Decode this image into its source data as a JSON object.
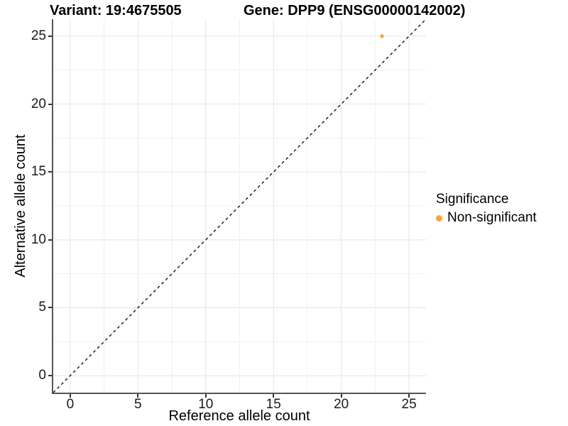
{
  "header": {
    "variant_title": "Variant: 19:4675505",
    "gene_title": "Gene: DPP9 (ENSG00000142002)"
  },
  "chart_data": {
    "type": "scatter",
    "title": "Variant: 19:4675505  /  Gene: DPP9 (ENSG00000142002)",
    "xlabel": "Reference allele count",
    "ylabel": "Alternative allele count",
    "xlim": [
      -1.25,
      26.25
    ],
    "ylim": [
      -1.25,
      26.25
    ],
    "x_ticks": [
      0,
      5,
      10,
      15,
      20,
      25
    ],
    "y_ticks": [
      0,
      5,
      10,
      15,
      20,
      25
    ],
    "x_minor_ticks": [
      2.5,
      7.5,
      12.5,
      17.5,
      22.5
    ],
    "y_minor_ticks": [
      2.5,
      7.5,
      12.5,
      17.5,
      22.5
    ],
    "grid": "major-and-minor",
    "identity_line": {
      "style": "dashed",
      "slope": 1,
      "intercept": 0
    },
    "series": [
      {
        "name": "Non-significant",
        "color": "#F9A242",
        "points": [
          {
            "x": 23,
            "y": 25
          }
        ]
      }
    ],
    "legend": {
      "title": "Significance",
      "position": "right",
      "entries": [
        {
          "label": "Non-significant",
          "color": "#F9A242"
        }
      ]
    }
  },
  "theme": {
    "background": "#FFFFFF",
    "grid_major": "#E3E3E3",
    "grid_minor": "#F1F1F1",
    "axis_line": "#555555",
    "tick_mark": "#333333",
    "tick_text": "#1A1A1A",
    "dashed_line": "#111111"
  }
}
